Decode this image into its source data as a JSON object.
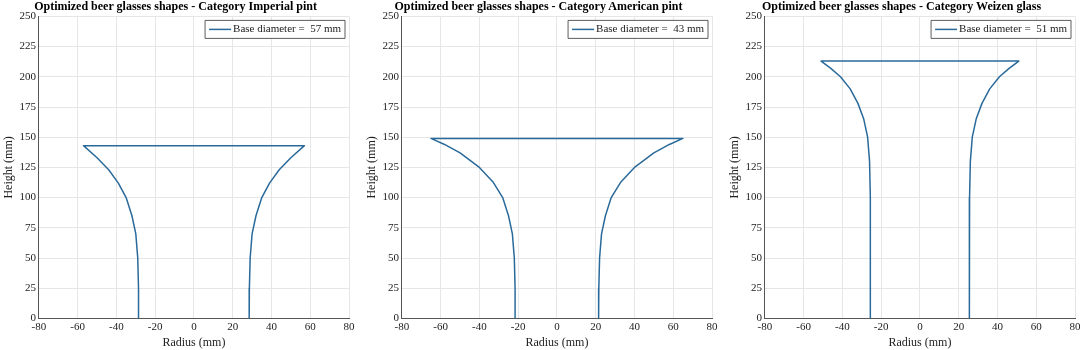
{
  "chart_data": [
    {
      "type": "line",
      "title": "Optimized beer glasses shapes - Category Imperial pint",
      "xlabel": "Radius (mm)",
      "ylabel": "Height (mm)",
      "xlim": [
        -80,
        80
      ],
      "xticks": [
        -80,
        -60,
        -40,
        -20,
        0,
        20,
        40,
        60,
        80
      ],
      "ylim": [
        0,
        250
      ],
      "yticks": [
        0,
        25,
        50,
        75,
        100,
        125,
        150,
        175,
        200,
        225,
        250
      ],
      "grid": true,
      "legend": "top right",
      "series": [
        {
          "name": "Base diameter =  57 mm",
          "color": "#2a6a9a",
          "x": [
            -28.5,
            -28.6,
            -29,
            -30,
            -32,
            -35,
            -39,
            -44,
            -50,
            -57,
            57,
            50,
            44,
            39,
            35,
            32,
            30,
            29,
            28.6,
            28.5
          ],
          "values": [
            0,
            25,
            50,
            70,
            85,
            100,
            112,
            123,
            133,
            143,
            143,
            133,
            123,
            112,
            100,
            85,
            70,
            50,
            25,
            0
          ]
        }
      ]
    },
    {
      "type": "line",
      "title": "Optimized beer glasses shapes - Category American pint",
      "xlabel": "Radius (mm)",
      "ylabel": "Height (mm)",
      "xlim": [
        -80,
        80
      ],
      "xticks": [
        -80,
        -60,
        -40,
        -20,
        0,
        20,
        40,
        60,
        80
      ],
      "ylim": [
        0,
        250
      ],
      "yticks": [
        0,
        25,
        50,
        75,
        100,
        125,
        150,
        175,
        200,
        225,
        250
      ],
      "grid": true,
      "legend": "top right",
      "series": [
        {
          "name": "Base diameter =  43 mm",
          "color": "#2a6a9a",
          "x": [
            -21.5,
            -21.6,
            -22,
            -23,
            -25,
            -28,
            -33,
            -40,
            -50,
            -58,
            -65,
            65,
            58,
            50,
            40,
            33,
            28,
            25,
            23,
            22,
            21.6,
            21.5
          ],
          "values": [
            0,
            25,
            50,
            70,
            85,
            100,
            113,
            125,
            137,
            144,
            149,
            149,
            144,
            137,
            125,
            113,
            100,
            85,
            70,
            50,
            25,
            0
          ]
        }
      ]
    },
    {
      "type": "line",
      "title": "Optimized beer glasses shapes - Category Weizen glass",
      "xlabel": "Radius (mm)",
      "ylabel": "Height (mm)",
      "xlim": [
        -80,
        80
      ],
      "xticks": [
        -80,
        -60,
        -40,
        -20,
        0,
        20,
        40,
        60,
        80
      ],
      "ylim": [
        0,
        250
      ],
      "yticks": [
        0,
        25,
        50,
        75,
        100,
        125,
        150,
        175,
        200,
        225,
        250
      ],
      "grid": true,
      "legend": "top right",
      "series": [
        {
          "name": "Base diameter =  51 mm",
          "color": "#2a6a9a",
          "x": [
            -25.5,
            -25.6,
            -26,
            -27,
            -29,
            -32,
            -36,
            -41,
            -46,
            -51,
            51,
            46,
            41,
            36,
            32,
            29,
            27,
            26,
            25.6,
            25.5
          ],
          "values": [
            0,
            100,
            130,
            150,
            165,
            178,
            190,
            200,
            207,
            213,
            213,
            207,
            200,
            190,
            178,
            165,
            150,
            130,
            100,
            0
          ]
        }
      ]
    }
  ]
}
